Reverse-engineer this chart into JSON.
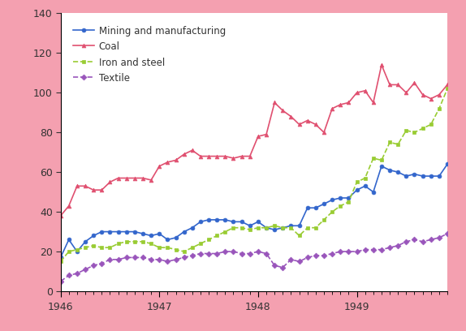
{
  "background_color": "#f4a0b0",
  "plot_bg_color": "#ffffff",
  "xlim": [
    0,
    47
  ],
  "ylim": [
    0,
    140
  ],
  "yticks": [
    0,
    20,
    40,
    60,
    80,
    100,
    120,
    140
  ],
  "xtick_labels": [
    "1946",
    "1947",
    "1948",
    "1949"
  ],
  "xtick_positions": [
    0,
    12,
    24,
    36
  ],
  "series": {
    "mining": {
      "label": "Mining and manufacturing",
      "color": "#3366cc",
      "marker": "o",
      "linestyle": "-",
      "markersize": 3.5,
      "linewidth": 1.2,
      "values": [
        17,
        26,
        20,
        25,
        28,
        30,
        30,
        30,
        30,
        30,
        29,
        28,
        29,
        26,
        27,
        30,
        32,
        35,
        36,
        36,
        36,
        35,
        35,
        33,
        35,
        32,
        31,
        32,
        33,
        33,
        42,
        42,
        44,
        46,
        47,
        47,
        51,
        53,
        50,
        63,
        61,
        60,
        58,
        59,
        58,
        58,
        58,
        64
      ]
    },
    "coal": {
      "label": "Coal",
      "color": "#e05070",
      "marker": "^",
      "linestyle": "-",
      "markersize": 3.5,
      "linewidth": 1.2,
      "values": [
        38,
        43,
        53,
        53,
        51,
        51,
        55,
        57,
        57,
        57,
        57,
        56,
        63,
        65,
        66,
        69,
        71,
        68,
        68,
        68,
        68,
        67,
        68,
        68,
        78,
        79,
        95,
        91,
        88,
        84,
        86,
        84,
        80,
        92,
        94,
        95,
        100,
        101,
        95,
        114,
        104,
        104,
        100,
        105,
        99,
        97,
        99,
        104
      ]
    },
    "iron": {
      "label": "Iron and steel",
      "color": "#99cc33",
      "marker": "s",
      "linestyle": "--",
      "markersize": 3.5,
      "linewidth": 1.2,
      "values": [
        15,
        20,
        21,
        22,
        23,
        22,
        22,
        24,
        25,
        25,
        25,
        24,
        22,
        22,
        21,
        20,
        22,
        24,
        26,
        28,
        30,
        32,
        32,
        31,
        32,
        32,
        33,
        32,
        32,
        28,
        32,
        32,
        36,
        40,
        43,
        45,
        55,
        57,
        67,
        66,
        75,
        74,
        81,
        80,
        82,
        84,
        92,
        102
      ]
    },
    "textile": {
      "label": "Textile",
      "color": "#9955bb",
      "marker": "D",
      "linestyle": "--",
      "markersize": 3.5,
      "linewidth": 1.2,
      "values": [
        5,
        8,
        9,
        11,
        13,
        14,
        16,
        16,
        17,
        17,
        17,
        16,
        16,
        15,
        16,
        17,
        18,
        19,
        19,
        19,
        20,
        20,
        19,
        19,
        20,
        19,
        13,
        12,
        16,
        15,
        17,
        18,
        18,
        19,
        20,
        20,
        20,
        21,
        21,
        21,
        22,
        23,
        25,
        26,
        25,
        26,
        27,
        29
      ]
    }
  }
}
